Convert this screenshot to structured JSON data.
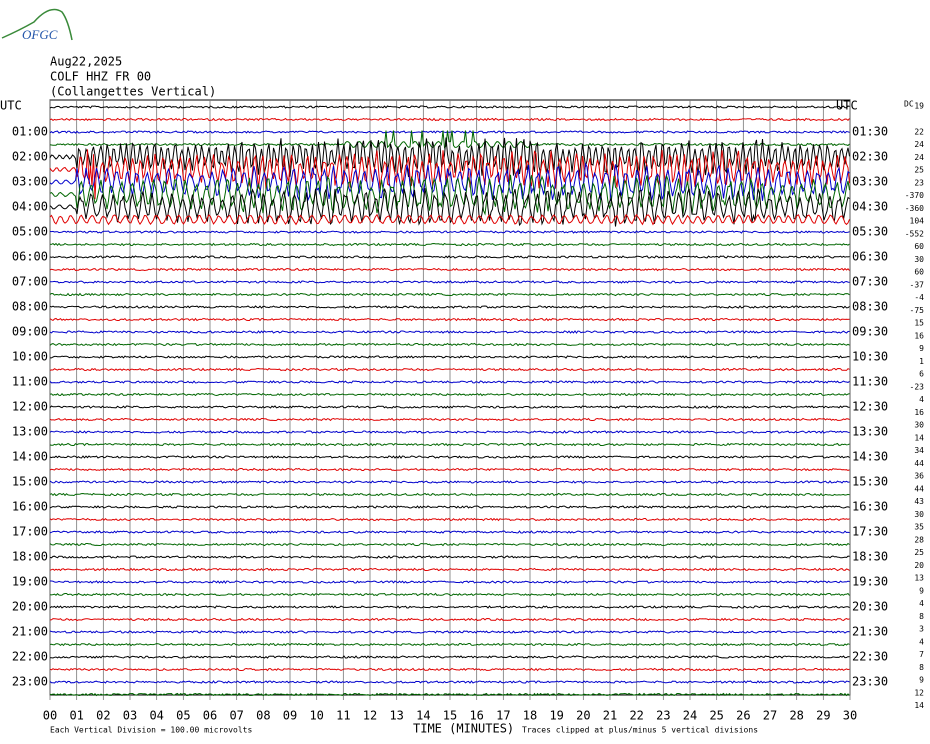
{
  "header": {
    "logo": "OFGC",
    "date": "Aug22,2025",
    "station": "COLF HHZ FR 00",
    "location": "(Collangettes Vertical)"
  },
  "left_labels": [
    "UTC",
    "01:00",
    "02:00",
    "03:00",
    "04:00",
    "05:00",
    "06:00",
    "07:00",
    "08:00",
    "09:00",
    "10:00",
    "11:00",
    "12:00",
    "13:00",
    "14:00",
    "15:00",
    "16:00",
    "17:00",
    "18:00",
    "19:00",
    "20:00",
    "21:00",
    "22:00",
    "23:00"
  ],
  "right_labels": [
    "UTC",
    "01:30",
    "02:30",
    "03:30",
    "04:30",
    "05:30",
    "06:30",
    "07:30",
    "08:30",
    "09:30",
    "10:30",
    "11:30",
    "12:30",
    "13:30",
    "14:30",
    "15:30",
    "16:30",
    "17:30",
    "18:30",
    "19:30",
    "20:30",
    "21:30",
    "22:30",
    "23:30"
  ],
  "dc_label": "DC",
  "dc_values": [
    19,
    22,
    24,
    24,
    25,
    23,
    -370,
    -360,
    104,
    -552,
    60,
    30,
    60,
    -37,
    -4,
    -75,
    15,
    16,
    9,
    1,
    6,
    -23,
    4,
    16,
    30,
    14,
    34,
    44,
    36,
    44,
    43,
    30,
    35,
    28,
    25,
    20,
    13,
    9,
    4,
    8,
    3,
    4,
    7,
    8,
    9,
    12,
    14
  ],
  "x_labels": [
    "00",
    "01",
    "02",
    "03",
    "04",
    "05",
    "06",
    "07",
    "08",
    "09",
    "10",
    "11",
    "12",
    "13",
    "14",
    "15",
    "16",
    "17",
    "18",
    "19",
    "20",
    "21",
    "22",
    "23",
    "24",
    "25",
    "26",
    "27",
    "28",
    "29",
    "30"
  ],
  "footer": {
    "division": "Each Vertical Division =  100.00 microvolts",
    "axis_title": "TIME (MINUTES)",
    "clipping": "Traces clipped at plus/minus 5 vertical divisions"
  }
}
